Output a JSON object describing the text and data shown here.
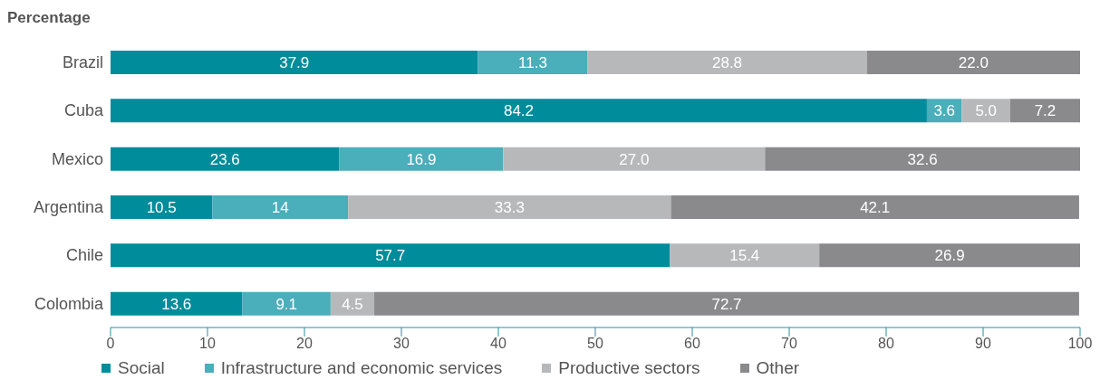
{
  "chart_data": {
    "type": "bar",
    "orientation": "horizontal",
    "stacked": true,
    "xlabel": "Percentage",
    "categories": [
      "Brazil",
      "Cuba",
      "Mexico",
      "Argentina",
      "Chile",
      "Colombia"
    ],
    "series": [
      {
        "name": "Social",
        "color": "#008c9b",
        "values": [
          37.9,
          84.2,
          23.6,
          10.5,
          57.7,
          13.6
        ],
        "value_labels": [
          "37.9",
          "84.2",
          "23.6",
          "10.5",
          "57.7",
          "13.6"
        ]
      },
      {
        "name": "Infrastructure and economic services",
        "color": "#4aaebb",
        "values": [
          11.3,
          3.6,
          16.9,
          14,
          null,
          9.1
        ],
        "value_labels": [
          "11.3",
          "3.6",
          "16.9",
          "14",
          null,
          "9.1"
        ]
      },
      {
        "name": "Productive sectors",
        "color": "#b7b8ba",
        "values": [
          28.8,
          5.0,
          27.0,
          33.3,
          15.4,
          4.5
        ],
        "value_labels": [
          "28.8",
          "5.0",
          "27.0",
          "33.3",
          "15.4",
          "4.5"
        ]
      },
      {
        "name": "Other",
        "color": "#8a8a8c",
        "values": [
          22.0,
          7.2,
          32.6,
          42.1,
          26.9,
          72.7
        ],
        "value_labels": [
          "22.0",
          "7.2",
          "32.6",
          "42.1",
          "26.9",
          "72.7"
        ]
      }
    ],
    "xlim": [
      0,
      100
    ],
    "xticks": [
      0,
      10,
      20,
      30,
      40,
      50,
      60,
      70,
      80,
      90,
      100
    ],
    "legend": "bottom"
  }
}
